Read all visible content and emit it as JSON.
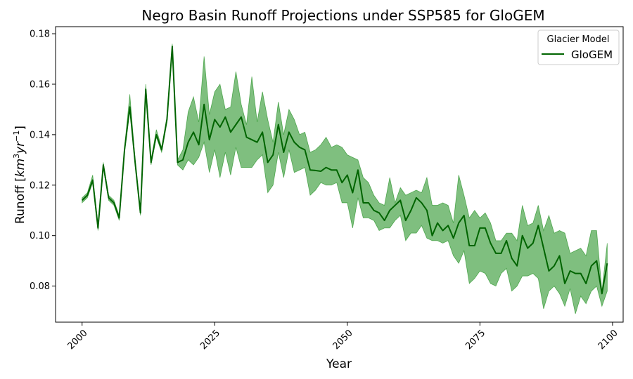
{
  "chart_data": {
    "type": "area",
    "title": "Negro Basin Runoff Projections under SSP585 for GloGEM",
    "xlabel": "Year",
    "ylabel": "Runoff [km³yr⁻¹]",
    "ylabel_parts": {
      "prefix": "Runoff [",
      "km": "km",
      "sup1": "3",
      "yr": "yr",
      "sup2": "−1",
      "suffix": "]"
    },
    "xlim": [
      1995,
      2102
    ],
    "ylim": [
      0.0657,
      0.1828
    ],
    "xticks": [
      2000,
      2025,
      2050,
      2075,
      2100
    ],
    "yticks": [
      0.08,
      0.1,
      0.12,
      0.14,
      0.16,
      0.18
    ],
    "grid": false,
    "legend": {
      "title": "Glacier Model",
      "position": "top-right",
      "entries": [
        "GloGEM"
      ]
    },
    "colors": {
      "line": "#006400",
      "band": "#008000"
    },
    "x": [
      2000,
      2001,
      2002,
      2003,
      2004,
      2005,
      2006,
      2007,
      2008,
      2009,
      2010,
      2011,
      2012,
      2013,
      2014,
      2015,
      2016,
      2017,
      2018,
      2019,
      2020,
      2021,
      2022,
      2023,
      2024,
      2025,
      2026,
      2027,
      2028,
      2029,
      2030,
      2031,
      2032,
      2033,
      2034,
      2035,
      2036,
      2037,
      2038,
      2039,
      2040,
      2041,
      2042,
      2043,
      2044,
      2045,
      2046,
      2047,
      2048,
      2049,
      2050,
      2051,
      2052,
      2053,
      2054,
      2055,
      2056,
      2057,
      2058,
      2059,
      2060,
      2061,
      2062,
      2063,
      2064,
      2065,
      2066,
      2067,
      2068,
      2069,
      2070,
      2071,
      2072,
      2073,
      2074,
      2075,
      2076,
      2077,
      2078,
      2079,
      2080,
      2081,
      2082,
      2083,
      2084,
      2085,
      2086,
      2087,
      2088,
      2089,
      2090,
      2091,
      2092,
      2093,
      2094,
      2095,
      2096,
      2097,
      2098,
      2099
    ],
    "series": [
      {
        "name": "GloGEM",
        "values": [
          0.114,
          0.116,
          0.122,
          0.103,
          0.128,
          0.115,
          0.113,
          0.107,
          0.134,
          0.151,
          0.129,
          0.109,
          0.158,
          0.129,
          0.14,
          0.134,
          0.146,
          0.175,
          0.129,
          0.13,
          0.137,
          0.141,
          0.136,
          0.152,
          0.138,
          0.146,
          0.143,
          0.147,
          0.141,
          0.144,
          0.147,
          0.139,
          0.138,
          0.137,
          0.141,
          0.129,
          0.132,
          0.144,
          0.133,
          0.141,
          0.137,
          0.135,
          0.134,
          0.126,
          0.1258,
          0.1255,
          0.127,
          0.126,
          0.126,
          0.121,
          0.124,
          0.117,
          0.126,
          0.113,
          0.113,
          0.11,
          0.109,
          0.106,
          0.11,
          0.112,
          0.114,
          0.106,
          0.11,
          0.115,
          0.113,
          0.11,
          0.1,
          0.105,
          0.102,
          0.104,
          0.099,
          0.105,
          0.108,
          0.096,
          0.096,
          0.103,
          0.103,
          0.097,
          0.093,
          0.093,
          0.098,
          0.091,
          0.088,
          0.1,
          0.095,
          0.097,
          0.104,
          0.095,
          0.086,
          0.088,
          0.092,
          0.081,
          0.086,
          0.085,
          0.085,
          0.081,
          0.088,
          0.09,
          0.077,
          0.089
        ],
        "lower": [
          0.113,
          0.115,
          0.121,
          0.102,
          0.127,
          0.114,
          0.112,
          0.106,
          0.133,
          0.15,
          0.128,
          0.108,
          0.157,
          0.128,
          0.139,
          0.133,
          0.145,
          0.174,
          0.128,
          0.126,
          0.13,
          0.128,
          0.131,
          0.137,
          0.125,
          0.134,
          0.123,
          0.133,
          0.124,
          0.135,
          0.127,
          0.127,
          0.127,
          0.13,
          0.132,
          0.117,
          0.12,
          0.133,
          0.123,
          0.134,
          0.125,
          0.126,
          0.127,
          0.116,
          0.118,
          0.121,
          0.12,
          0.12,
          0.121,
          0.113,
          0.113,
          0.103,
          0.115,
          0.107,
          0.107,
          0.106,
          0.102,
          0.103,
          0.103,
          0.106,
          0.108,
          0.098,
          0.101,
          0.101,
          0.104,
          0.099,
          0.098,
          0.098,
          0.097,
          0.098,
          0.092,
          0.089,
          0.094,
          0.081,
          0.083,
          0.086,
          0.085,
          0.081,
          0.08,
          0.085,
          0.087,
          0.078,
          0.08,
          0.084,
          0.084,
          0.085,
          0.083,
          0.071,
          0.078,
          0.08,
          0.077,
          0.072,
          0.079,
          0.069,
          0.076,
          0.073,
          0.078,
          0.08,
          0.072,
          0.078
        ],
        "upper": [
          0.115,
          0.117,
          0.124,
          0.104,
          0.129,
          0.116,
          0.114,
          0.108,
          0.135,
          0.156,
          0.13,
          0.11,
          0.16,
          0.13,
          0.142,
          0.135,
          0.147,
          0.176,
          0.13,
          0.134,
          0.149,
          0.155,
          0.145,
          0.171,
          0.148,
          0.157,
          0.16,
          0.15,
          0.151,
          0.165,
          0.152,
          0.144,
          0.163,
          0.145,
          0.157,
          0.146,
          0.137,
          0.153,
          0.14,
          0.15,
          0.146,
          0.14,
          0.141,
          0.133,
          0.134,
          0.136,
          0.139,
          0.135,
          0.136,
          0.135,
          0.132,
          0.131,
          0.13,
          0.123,
          0.121,
          0.116,
          0.113,
          0.112,
          0.123,
          0.113,
          0.119,
          0.116,
          0.117,
          0.118,
          0.117,
          0.123,
          0.112,
          0.112,
          0.113,
          0.112,
          0.105,
          0.124,
          0.116,
          0.107,
          0.11,
          0.107,
          0.109,
          0.105,
          0.098,
          0.098,
          0.101,
          0.101,
          0.098,
          0.112,
          0.104,
          0.105,
          0.112,
          0.102,
          0.108,
          0.101,
          0.102,
          0.101,
          0.093,
          0.094,
          0.095,
          0.092,
          0.102,
          0.102,
          0.078,
          0.097
        ]
      }
    ]
  }
}
